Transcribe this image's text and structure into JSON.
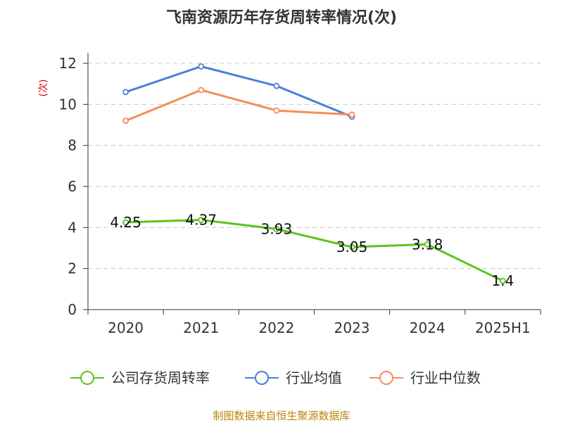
{
  "chart_data": {
    "type": "line",
    "title": "飞南资源历年存货周转率情况(次)",
    "ylabel": "(次)",
    "xlabel": "",
    "categories": [
      "2020",
      "2021",
      "2022",
      "2023",
      "2024",
      "2025H1"
    ],
    "ylim": [
      0,
      12
    ],
    "yticks": [
      0,
      2,
      4,
      6,
      8,
      10,
      12
    ],
    "grid": true,
    "legend_position": "bottom",
    "series": [
      {
        "name": "公司存货周转率",
        "color": "#5cc41f",
        "values": [
          4.25,
          4.37,
          3.93,
          3.05,
          3.18,
          1.4
        ],
        "labels": [
          "4.25",
          "4.37",
          "3.93",
          "3.05",
          "3.18",
          "1.4"
        ]
      },
      {
        "name": "行业均值",
        "color": "#4a7fd8",
        "values": [
          10.6,
          11.85,
          10.9,
          9.4,
          null,
          null
        ]
      },
      {
        "name": "行业中位数",
        "color": "#f58d5a",
        "values": [
          9.2,
          10.7,
          9.7,
          9.5,
          null,
          null
        ]
      }
    ],
    "source": "制图数据来自恒生聚源数据库"
  }
}
